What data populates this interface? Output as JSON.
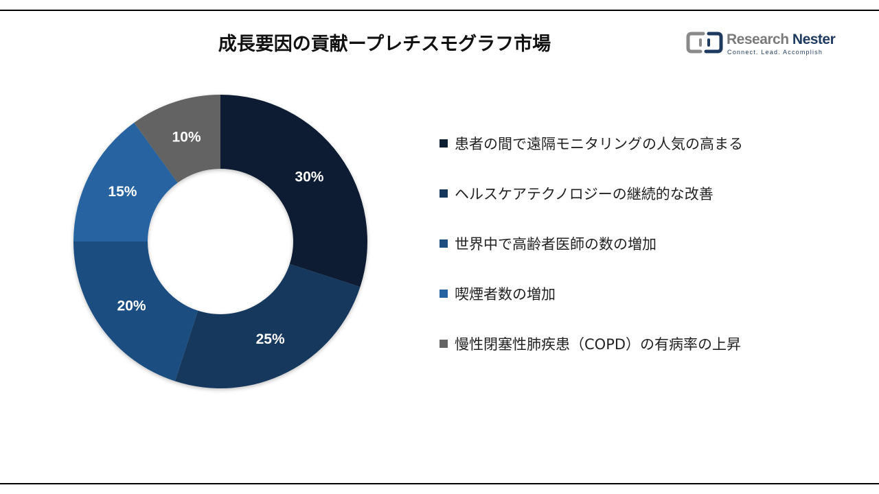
{
  "chart_data": {
    "type": "pie",
    "title": "成長要因の貢献ープレチスモグラフ市場",
    "donut": true,
    "categories": [
      "患者の間で遠隔モニタリングの人気の高まる",
      "ヘルスケアテクノロジーの継続的な改善",
      "世界中で高齢者医師の数の増加",
      "喫煙者数の増加",
      "慢性閉塞性肺疾患（COPD）の有病率の上昇"
    ],
    "values": [
      30,
      25,
      20,
      15,
      10
    ],
    "value_labels": [
      "30%",
      "25%",
      "20%",
      "15%",
      "10%"
    ],
    "colors": [
      "#0d1e30",
      "#16375c",
      "#1c4e80",
      "#2563a0",
      "#646464"
    ],
    "legend": "right"
  },
  "logo": {
    "name_part1": "Research",
    "name_part2": "Nester",
    "tagline": "Connect. Lead. Accomplish"
  }
}
